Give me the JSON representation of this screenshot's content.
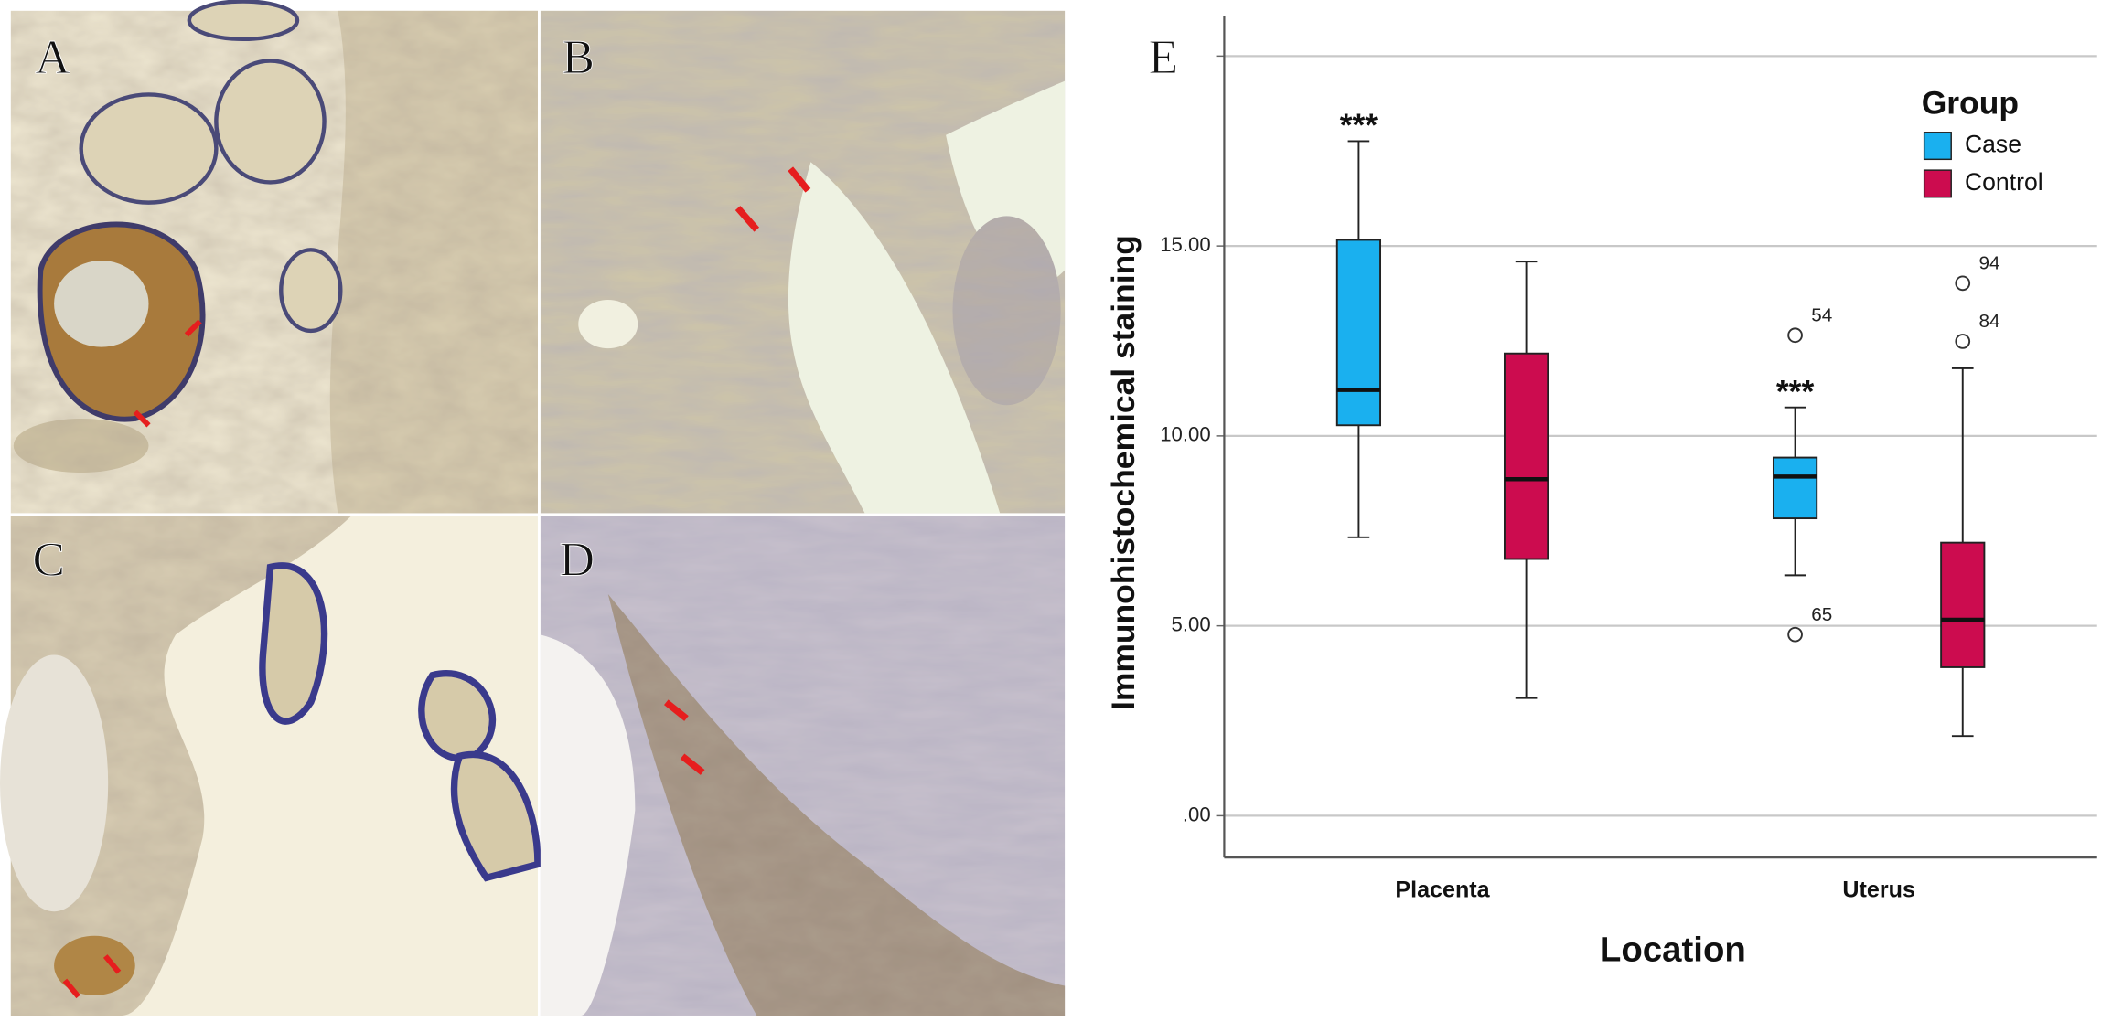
{
  "panels": {
    "labels": [
      "A",
      "B",
      "C",
      "D"
    ]
  },
  "chart_data": {
    "type": "box",
    "panel_label": "E",
    "x_label": "Location",
    "y_label": "Immunohistochemical staining",
    "categories": [
      "Placenta",
      "Uterus"
    ],
    "legend_title": "Group",
    "legend": "top-right",
    "grid": true,
    "ylim": [
      -1.1,
      21.05
    ],
    "yticks": [
      {
        "value": 0,
        "label": ".00"
      },
      {
        "value": 5,
        "label": "5.00"
      },
      {
        "value": 10,
        "label": "10.00"
      },
      {
        "value": 15,
        "label": "15.00"
      },
      {
        "value": 20,
        "label": null
      }
    ],
    "series": [
      {
        "name": "Case",
        "color": "#1ab0ef",
        "boxes": [
          {
            "whislo": 7.33,
            "q1": 10.28,
            "med": 11.21,
            "q3": 15.16,
            "whishi": 17.76,
            "fliers": [],
            "annotation": "***"
          },
          {
            "whislo": 6.33,
            "q1": 7.83,
            "med": 8.93,
            "q3": 9.43,
            "whishi": 10.75,
            "fliers": [
              {
                "value": 12.65,
                "label": "54"
              },
              {
                "value": 4.77,
                "label": "65"
              }
            ],
            "annotation": "***"
          }
        ]
      },
      {
        "name": "Control",
        "color": "#cc0c4f",
        "boxes": [
          {
            "whislo": 3.1,
            "q1": 6.76,
            "med": 8.86,
            "q3": 12.17,
            "whishi": 14.59,
            "fliers": []
          },
          {
            "whislo": 2.1,
            "q1": 3.91,
            "med": 5.16,
            "q3": 7.19,
            "whishi": 11.78,
            "fliers": [
              {
                "value": 14.02,
                "label": "94"
              },
              {
                "value": 12.49,
                "label": "84"
              }
            ]
          }
        ]
      }
    ]
  }
}
